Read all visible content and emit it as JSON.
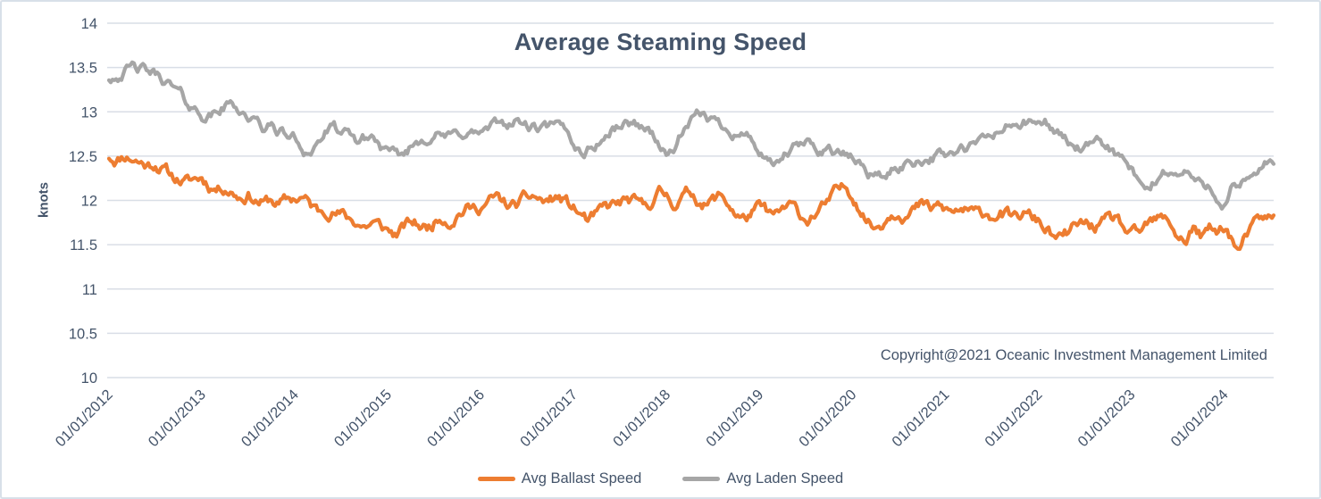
{
  "colors": {
    "accent_orange": "#ED7D31",
    "accent_gray": "#A6A6A6",
    "title_text": "#44546A",
    "axis_text": "#44546A",
    "gridline": "#D9DEE6",
    "figure_border": "#D8E0E9",
    "background": "#FFFFFF"
  },
  "chart_data": {
    "type": "line",
    "title": "Average Steaming Speed",
    "ylabel": "knots",
    "xlabel": "",
    "ylim": [
      10,
      14
    ],
    "ytick_step": 0.5,
    "ytick_labels": [
      "10",
      "10.5",
      "11",
      "11.5",
      "12",
      "12.5",
      "13",
      "13.5",
      "14"
    ],
    "x_domain_years": [
      2012.0,
      2024.53
    ],
    "x_tick_labels": [
      "01/01/2012",
      "01/01/2013",
      "01/01/2014",
      "01/01/2015",
      "01/01/2016",
      "01/01/2017",
      "01/01/2018",
      "01/01/2019",
      "01/01/2020",
      "01/01/2021",
      "01/01/2022",
      "01/01/2023",
      "01/01/2024"
    ],
    "grid": "horizontal-only",
    "legend_position": "bottom-center",
    "annotation": "Copyright@2021 Oceanic Investment Management Limited",
    "sampling_note": "monthly trend values estimated from plot, Jan 2012 through Jul 2024",
    "series": [
      {
        "name": "Avg Ballast Speed",
        "color": "#ED7D31",
        "noise_seed": 11,
        "noise_amplitude": 0.05,
        "monthly_values": [
          12.5,
          12.47,
          12.52,
          12.49,
          12.44,
          12.4,
          12.43,
          12.36,
          12.28,
          12.24,
          12.2,
          12.23,
          12.26,
          12.18,
          12.14,
          12.17,
          12.11,
          12.05,
          12.08,
          12.01,
          11.97,
          12.0,
          11.95,
          11.99,
          12.02,
          12.04,
          11.94,
          11.87,
          11.92,
          11.89,
          11.84,
          11.79,
          11.76,
          11.71,
          11.75,
          11.7,
          11.66,
          11.61,
          11.68,
          11.74,
          11.72,
          11.68,
          11.76,
          11.84,
          11.79,
          11.87,
          11.92,
          11.9,
          11.94,
          11.98,
          12.02,
          11.96,
          11.92,
          11.96,
          12.01,
          12.04,
          11.98,
          12.0,
          12.03,
          11.97,
          11.9,
          11.83,
          11.76,
          11.82,
          11.89,
          11.93,
          11.96,
          11.99,
          11.95,
          11.9,
          11.99,
          12.08,
          12.05,
          11.98,
          12.04,
          12.09,
          12.03,
          11.96,
          12.0,
          12.05,
          11.96,
          11.85,
          11.78,
          11.86,
          11.9,
          11.85,
          11.8,
          11.88,
          11.92,
          11.85,
          11.78,
          11.85,
          11.9,
          11.98,
          12.08,
          12.13,
          12.08,
          11.94,
          11.78,
          11.7,
          11.78,
          11.88,
          11.92,
          11.86,
          11.9,
          11.94,
          11.88,
          11.92,
          11.88,
          11.85,
          11.9,
          11.86,
          11.82,
          11.86,
          11.84,
          11.88,
          11.82,
          11.78,
          11.84,
          11.8,
          11.76,
          11.68,
          11.58,
          11.54,
          11.63,
          11.7,
          11.73,
          11.7,
          11.72,
          11.74,
          11.78,
          11.68,
          11.58,
          11.6,
          11.7,
          11.75,
          11.77,
          11.74,
          11.6,
          11.55,
          11.7,
          11.58,
          11.66,
          11.62,
          11.72,
          11.56,
          11.42,
          11.6,
          11.7,
          11.79,
          11.78
        ]
      },
      {
        "name": "Avg Laden Speed",
        "color": "#A6A6A6",
        "noise_seed": 42,
        "noise_amplitude": 0.045,
        "monthly_values": [
          13.38,
          13.43,
          13.47,
          13.49,
          13.47,
          13.44,
          13.41,
          13.37,
          13.29,
          13.2,
          13.1,
          13.03,
          12.98,
          12.95,
          13.0,
          13.06,
          13.09,
          13.03,
          12.95,
          12.87,
          12.8,
          12.83,
          12.78,
          12.73,
          12.7,
          12.58,
          12.56,
          12.66,
          12.77,
          12.8,
          12.75,
          12.7,
          12.66,
          12.69,
          12.72,
          12.62,
          12.52,
          12.46,
          12.5,
          12.6,
          12.68,
          12.73,
          12.77,
          12.73,
          12.7,
          12.74,
          12.78,
          12.76,
          12.76,
          12.79,
          12.83,
          12.86,
          12.88,
          12.89,
          12.83,
          12.8,
          12.79,
          12.81,
          12.8,
          12.77,
          12.65,
          12.55,
          12.58,
          12.65,
          12.72,
          12.79,
          12.85,
          12.87,
          12.86,
          12.84,
          12.78,
          12.65,
          12.48,
          12.6,
          12.75,
          12.85,
          12.92,
          12.96,
          12.9,
          12.85,
          12.82,
          12.79,
          12.75,
          12.7,
          12.55,
          12.4,
          12.37,
          12.48,
          12.55,
          12.6,
          12.63,
          12.6,
          12.57,
          12.6,
          12.55,
          12.5,
          12.47,
          12.4,
          12.33,
          12.28,
          12.27,
          12.32,
          12.38,
          12.42,
          12.45,
          12.48,
          12.5,
          12.51,
          12.51,
          12.53,
          12.55,
          12.58,
          12.62,
          12.67,
          12.72,
          12.78,
          12.83,
          12.86,
          12.88,
          12.86,
          12.85,
          12.87,
          12.8,
          12.72,
          12.65,
          12.6,
          12.57,
          12.6,
          12.62,
          12.6,
          12.52,
          12.44,
          12.33,
          12.14,
          12.1,
          12.2,
          12.3,
          12.35,
          12.27,
          12.33,
          12.25,
          12.15,
          12.18,
          12.08,
          11.96,
          12.15,
          12.08,
          12.22,
          12.32,
          12.4,
          12.44
        ]
      }
    ]
  }
}
